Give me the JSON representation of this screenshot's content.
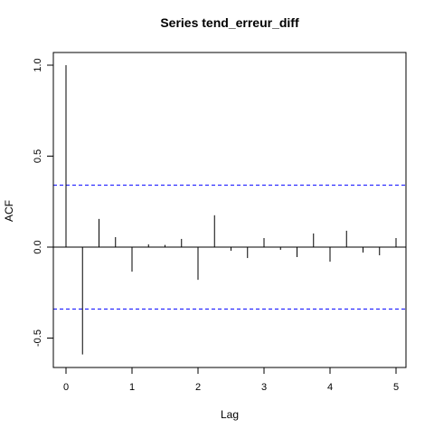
{
  "chart_data": {
    "type": "bar",
    "title": "Series  tend_erreur_diff",
    "xlabel": "Lag",
    "ylabel": "ACF",
    "xlim": [
      -0.2,
      5.2
    ],
    "ylim": [
      -0.66,
      1.0
    ],
    "x_ticks": [
      0,
      1,
      2,
      3,
      4,
      5
    ],
    "y_ticks": [
      1.0,
      0.5,
      0.0,
      -0.5
    ],
    "x_tick_labels": [
      "0",
      "1",
      "2",
      "3",
      "4",
      "5"
    ],
    "y_tick_labels": [
      "1.0",
      "0.5",
      "0.0",
      "-0.5"
    ],
    "confidence_bounds": [
      0.34,
      -0.34
    ],
    "series": [
      {
        "lags": [
          0,
          0.25,
          0.5,
          0.75,
          1.0,
          1.25,
          1.5,
          1.75,
          2.0,
          2.25,
          2.5,
          2.75,
          3.0,
          3.25,
          3.5,
          3.75,
          4.0,
          4.25,
          4.5,
          4.75,
          5.0
        ],
        "values": [
          1.0,
          -0.59,
          0.155,
          0.055,
          -0.135,
          0.015,
          0.012,
          0.045,
          -0.18,
          0.175,
          -0.02,
          -0.06,
          0.05,
          -0.015,
          -0.055,
          0.075,
          -0.08,
          0.09,
          -0.03,
          -0.045,
          0.05
        ]
      }
    ],
    "colors": {
      "bars": "#000000",
      "confidence": "#0000ff",
      "axes": "#000000"
    },
    "grid": false
  }
}
